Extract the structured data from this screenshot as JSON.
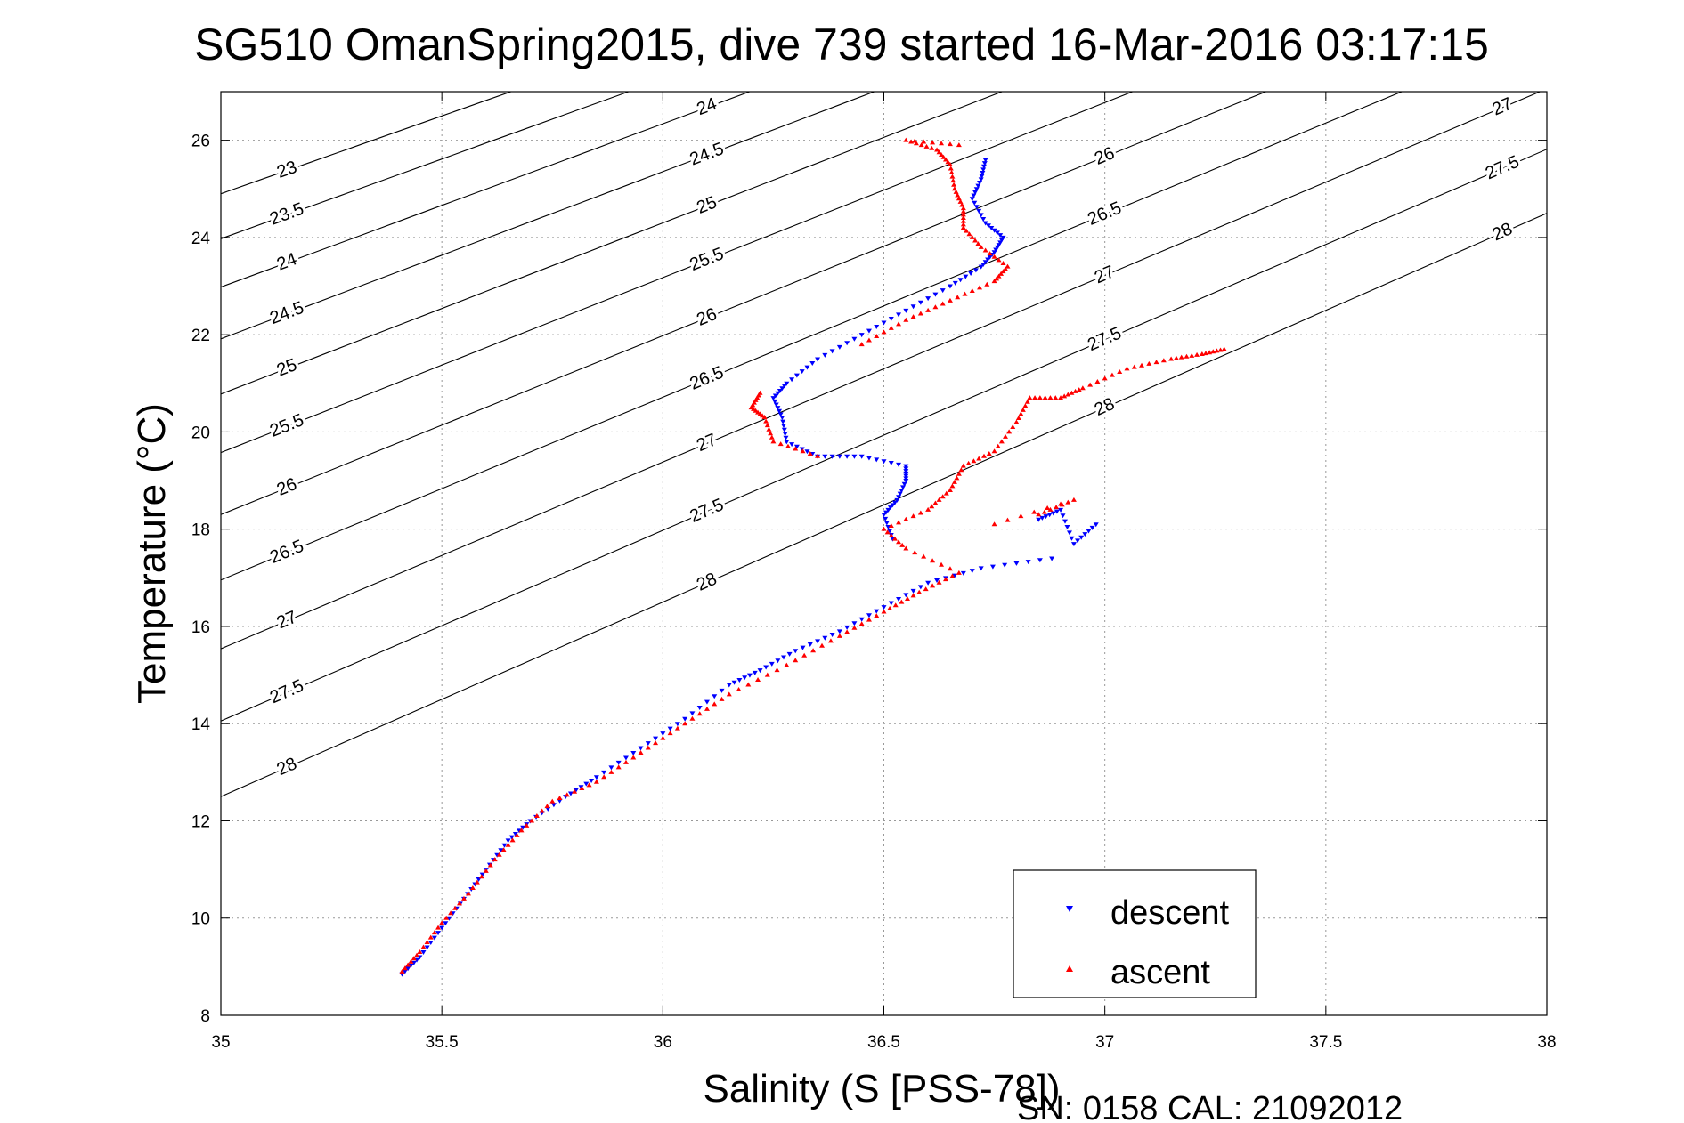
{
  "chart_data": {
    "type": "scatter",
    "title": "SG510 OmanSpring2015, dive 739 started 16-Mar-2016 03:17:15",
    "xlabel": "Salinity (S [PSS-78])",
    "ylabel": "Temperature (°C)",
    "xlim": [
      35,
      38
    ],
    "ylim": [
      8,
      27
    ],
    "x_ticks": [
      "35",
      "35.5",
      "36",
      "36.5",
      "37",
      "37.5",
      "38"
    ],
    "y_ticks": [
      "8",
      "10",
      "12",
      "14",
      "16",
      "18",
      "20",
      "22",
      "24",
      "26"
    ],
    "grid": true,
    "legend_position": "bottom-right",
    "density_contours": {
      "levels": [
        23,
        23.5,
        24,
        24.5,
        25,
        25.5,
        26,
        26.5,
        27,
        27.5,
        28
      ],
      "label_text": [
        "23",
        "23.5",
        "24",
        "24.5",
        "25",
        "25.5",
        "26",
        "26.5",
        "27",
        "27.5",
        "28"
      ]
    },
    "series": [
      {
        "name": "descent",
        "color": "#0000ff",
        "marker": "triangle-down",
        "points": [
          [
            35.41,
            8.85
          ],
          [
            35.45,
            9.2
          ],
          [
            35.5,
            9.8
          ],
          [
            35.55,
            10.4
          ],
          [
            35.6,
            11.0
          ],
          [
            35.65,
            11.6
          ],
          [
            35.7,
            12.0
          ],
          [
            35.78,
            12.5
          ],
          [
            35.85,
            12.9
          ],
          [
            35.95,
            13.5
          ],
          [
            36.05,
            14.1
          ],
          [
            36.15,
            14.8
          ],
          [
            36.22,
            15.1
          ],
          [
            36.3,
            15.5
          ],
          [
            36.4,
            15.9
          ],
          [
            36.5,
            16.4
          ],
          [
            36.6,
            16.9
          ],
          [
            36.72,
            17.2
          ],
          [
            36.88,
            17.4
          ],
          [
            36.52,
            17.8
          ],
          [
            36.5,
            18.3
          ],
          [
            36.53,
            18.6
          ],
          [
            36.55,
            19.0
          ],
          [
            36.55,
            19.3
          ],
          [
            36.45,
            19.5
          ],
          [
            36.35,
            19.5
          ],
          [
            36.28,
            19.8
          ],
          [
            36.27,
            20.3
          ],
          [
            36.25,
            20.7
          ],
          [
            36.28,
            21.0
          ],
          [
            36.35,
            21.5
          ],
          [
            36.45,
            22.0
          ],
          [
            36.55,
            22.5
          ],
          [
            36.65,
            23.0
          ],
          [
            36.72,
            23.4
          ],
          [
            36.75,
            23.7
          ],
          [
            36.77,
            24.0
          ],
          [
            36.73,
            24.3
          ],
          [
            36.7,
            24.8
          ],
          [
            36.72,
            25.2
          ],
          [
            36.73,
            25.6
          ],
          [
            36.85,
            18.2
          ],
          [
            36.9,
            18.4
          ],
          [
            36.93,
            17.7
          ],
          [
            36.98,
            18.1
          ]
        ]
      },
      {
        "name": "ascent",
        "color": "#ff0000",
        "marker": "triangle-up",
        "points": [
          [
            35.41,
            8.9
          ],
          [
            35.45,
            9.3
          ],
          [
            35.5,
            9.9
          ],
          [
            35.56,
            10.5
          ],
          [
            35.62,
            11.2
          ],
          [
            35.68,
            11.8
          ],
          [
            35.75,
            12.4
          ],
          [
            35.85,
            12.8
          ],
          [
            35.95,
            13.4
          ],
          [
            36.05,
            14.0
          ],
          [
            36.15,
            14.6
          ],
          [
            36.28,
            15.2
          ],
          [
            36.4,
            15.8
          ],
          [
            36.5,
            16.3
          ],
          [
            36.58,
            16.7
          ],
          [
            36.67,
            17.1
          ],
          [
            36.55,
            17.6
          ],
          [
            36.5,
            18.0
          ],
          [
            36.6,
            18.4
          ],
          [
            36.65,
            18.8
          ],
          [
            36.68,
            19.3
          ],
          [
            36.75,
            19.6
          ],
          [
            36.8,
            20.2
          ],
          [
            36.83,
            20.7
          ],
          [
            36.9,
            20.7
          ],
          [
            36.95,
            20.9
          ],
          [
            37.05,
            21.3
          ],
          [
            37.15,
            21.5
          ],
          [
            37.22,
            21.6
          ],
          [
            37.27,
            21.7
          ],
          [
            36.35,
            19.5
          ],
          [
            36.25,
            19.8
          ],
          [
            36.23,
            20.3
          ],
          [
            36.2,
            20.5
          ],
          [
            36.22,
            20.8
          ],
          [
            36.45,
            21.8
          ],
          [
            36.55,
            22.3
          ],
          [
            36.65,
            22.7
          ],
          [
            36.75,
            23.1
          ],
          [
            36.78,
            23.4
          ],
          [
            36.72,
            23.8
          ],
          [
            36.68,
            24.2
          ],
          [
            36.68,
            24.6
          ],
          [
            36.66,
            25.0
          ],
          [
            36.65,
            25.5
          ],
          [
            36.62,
            25.8
          ],
          [
            36.55,
            26.0
          ],
          [
            36.67,
            25.9
          ],
          [
            36.85,
            18.3
          ],
          [
            36.93,
            18.6
          ],
          [
            36.75,
            18.1
          ]
        ]
      }
    ]
  },
  "footer": "SN: 0158  CAL: 21092012"
}
